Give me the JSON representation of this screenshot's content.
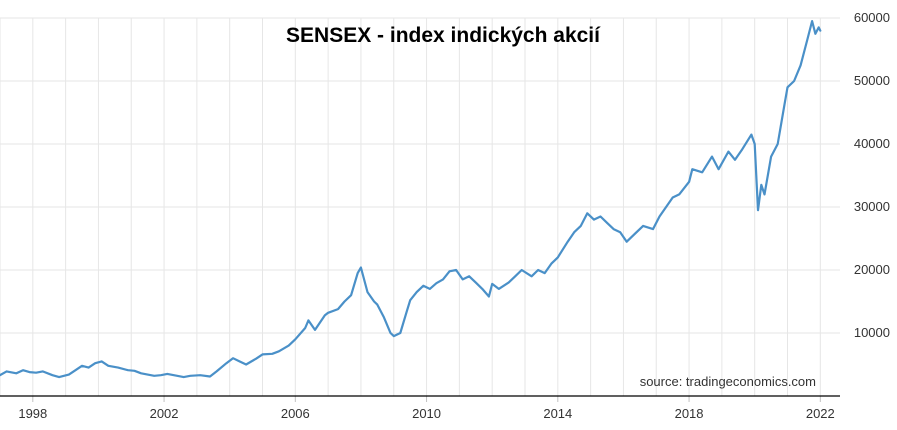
{
  "chart_data": {
    "type": "line",
    "title": "SENSEX - index indických akcií",
    "source": "source: tradingeconomics.com",
    "xlabel": "",
    "ylabel": "",
    "x_ticks": [
      "1998",
      "2002",
      "2006",
      "2010",
      "2014",
      "2018",
      "2022"
    ],
    "y_ticks": [
      "10000",
      "20000",
      "30000",
      "40000",
      "50000",
      "60000"
    ],
    "xlim": [
      1997.0,
      2022.6
    ],
    "ylim": [
      0,
      60000
    ],
    "grid": true,
    "legend": "none",
    "colors": {
      "line": "#4a90c8",
      "grid": "#e6e6e6",
      "axis": "#000000"
    },
    "series": [
      {
        "x": [
          1997.0,
          1997.2,
          1997.5,
          1997.7,
          1997.9,
          1998.1,
          1998.3,
          1998.6,
          1998.8,
          1999.1,
          1999.3,
          1999.5,
          1999.7,
          1999.9,
          2000.1,
          2000.3,
          2000.6,
          2000.9,
          2001.1,
          2001.3,
          2001.7,
          2001.9,
          2002.1,
          2002.3,
          2002.6,
          2002.8,
          2003.1,
          2003.4,
          2003.6,
          2003.9,
          2004.1,
          2004.3,
          2004.5,
          2004.8,
          2005.0,
          2005.3,
          2005.5,
          2005.8,
          2006.0,
          2006.3,
          2006.4,
          2006.6,
          2006.9,
          2007.0,
          2007.3,
          2007.5,
          2007.7,
          2007.9,
          2008.0,
          2008.2,
          2008.4,
          2008.5,
          2008.7,
          2008.9,
          2009.0,
          2009.2,
          2009.4,
          2009.5,
          2009.7,
          2009.9,
          2010.1,
          2010.3,
          2010.5,
          2010.7,
          2010.9,
          2011.1,
          2011.3,
          2011.5,
          2011.7,
          2011.9,
          2012.0,
          2012.2,
          2012.5,
          2012.7,
          2012.9,
          2013.2,
          2013.4,
          2013.6,
          2013.8,
          2014.0,
          2014.3,
          2014.5,
          2014.7,
          2014.9,
          2015.1,
          2015.3,
          2015.5,
          2015.7,
          2015.9,
          2016.1,
          2016.3,
          2016.6,
          2016.9,
          2017.1,
          2017.3,
          2017.5,
          2017.7,
          2018.0,
          2018.1,
          2018.4,
          2018.7,
          2018.9,
          2019.2,
          2019.4,
          2019.6,
          2019.9,
          2020.0,
          2020.1,
          2020.2,
          2020.3,
          2020.5,
          2020.7,
          2020.9,
          2021.0,
          2021.2,
          2021.4,
          2021.6,
          2021.75,
          2021.85,
          2021.95,
          2022.0
        ],
        "y": [
          3300,
          3900,
          3600,
          4100,
          3800,
          3700,
          3900,
          3300,
          3000,
          3400,
          4100,
          4800,
          4500,
          5200,
          5500,
          4800,
          4500,
          4100,
          4000,
          3600,
          3200,
          3300,
          3500,
          3300,
          3000,
          3200,
          3300,
          3100,
          3900,
          5200,
          6000,
          5500,
          5000,
          5900,
          6600,
          6700,
          7100,
          8000,
          9000,
          10800,
          12000,
          10500,
          12800,
          13200,
          13800,
          15000,
          16000,
          19500,
          20400,
          16500,
          15000,
          14500,
          12500,
          10000,
          9500,
          10000,
          13500,
          15200,
          16500,
          17500,
          17000,
          17900,
          18500,
          19800,
          20000,
          18500,
          19000,
          18000,
          17000,
          15800,
          17800,
          17000,
          18000,
          19000,
          20000,
          19000,
          20000,
          19500,
          21000,
          22000,
          24500,
          26000,
          27000,
          29000,
          28000,
          28500,
          27500,
          26500,
          26000,
          24500,
          25500,
          27000,
          26500,
          28500,
          30000,
          31500,
          32000,
          34000,
          36000,
          35500,
          38000,
          36000,
          38800,
          37500,
          39000,
          41500,
          40000,
          29500,
          33500,
          32000,
          38000,
          40000,
          46000,
          49000,
          50000,
          52500,
          56500,
          59500,
          57500,
          58500,
          58000
        ]
      }
    ]
  }
}
